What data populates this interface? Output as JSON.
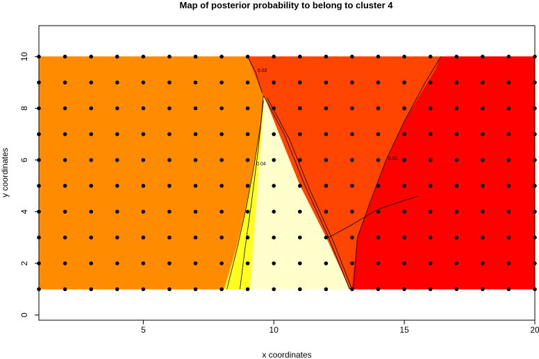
{
  "chart_data": {
    "type": "heatmap",
    "title": "Map of posterior probability to belong to cluster  4",
    "xlabel": "x coordinates",
    "ylabel": "y coordinates",
    "xlim": [
      1,
      20
    ],
    "ylim": [
      -0.2,
      11.2
    ],
    "xticks": [
      5,
      10,
      15,
      20
    ],
    "yticks": [
      0,
      2,
      4,
      6,
      8,
      10
    ],
    "grid": false,
    "legend": "none",
    "field_extent": {
      "x": [
        1,
        20
      ],
      "y": [
        1,
        10
      ]
    },
    "regions": [
      {
        "color": "#ff8c00",
        "polygon": [
          [
            1,
            1
          ],
          [
            8.1,
            1
          ],
          [
            8.55,
            2.5
          ],
          [
            8.9,
            4
          ],
          [
            9.2,
            5.5
          ],
          [
            9.45,
            7
          ],
          [
            9.6,
            8.5
          ],
          [
            9.2,
            9.5
          ],
          [
            9.0,
            10
          ],
          [
            1,
            10
          ]
        ]
      },
      {
        "color": "#ff4500",
        "polygon": [
          [
            9.6,
            8.5
          ],
          [
            9.2,
            9.5
          ],
          [
            9.0,
            10
          ],
          [
            16.4,
            10
          ],
          [
            16.2,
            9.5
          ],
          [
            15.0,
            7.5
          ],
          [
            14.3,
            6
          ],
          [
            13.7,
            4.4
          ],
          [
            13.2,
            3
          ],
          [
            13.0,
            1
          ],
          [
            12.9,
            1
          ],
          [
            12.0,
            3
          ],
          [
            11.0,
            5
          ],
          [
            10.2,
            7
          ]
        ]
      },
      {
        "color": "#ff0000",
        "polygon": [
          [
            16.4,
            10
          ],
          [
            20,
            10
          ],
          [
            20,
            1
          ],
          [
            13.0,
            1
          ],
          [
            13.2,
            3
          ],
          [
            13.7,
            4.4
          ],
          [
            14.3,
            6
          ],
          [
            15.0,
            7.5
          ],
          [
            16.2,
            9.5
          ]
        ]
      },
      {
        "color": "#ffff20",
        "polygon": [
          [
            8.1,
            1
          ],
          [
            9.1,
            1
          ],
          [
            9.2,
            2.5
          ],
          [
            9.35,
            4.5
          ],
          [
            9.5,
            6.5
          ],
          [
            9.65,
            8.4
          ],
          [
            9.6,
            8.5
          ],
          [
            9.45,
            7
          ],
          [
            9.2,
            5.5
          ],
          [
            8.9,
            4
          ],
          [
            8.55,
            2.5
          ]
        ]
      },
      {
        "color": "#ffffcc",
        "polygon": [
          [
            9.1,
            1
          ],
          [
            12.9,
            1
          ],
          [
            12.0,
            3
          ],
          [
            11.0,
            5
          ],
          [
            10.2,
            7
          ],
          [
            9.65,
            8.4
          ],
          [
            9.5,
            6.5
          ],
          [
            9.35,
            4.5
          ],
          [
            9.2,
            2.5
          ]
        ]
      }
    ],
    "contours": [
      {
        "label": "0.04",
        "points": [
          [
            8.2,
            1
          ],
          [
            8.6,
            2.6
          ],
          [
            8.95,
            4.2
          ],
          [
            9.25,
            5.8
          ],
          [
            9.5,
            7.4
          ],
          [
            9.6,
            8.5
          ]
        ]
      },
      {
        "label": "",
        "points": [
          [
            8.7,
            1
          ],
          [
            8.9,
            2.6
          ],
          [
            9.15,
            4.4
          ],
          [
            9.4,
            6.4
          ],
          [
            9.6,
            8.3
          ]
        ]
      },
      {
        "label": "",
        "points": [
          [
            9.6,
            8.5
          ],
          [
            10.4,
            7
          ],
          [
            11.2,
            5
          ],
          [
            12.1,
            3
          ],
          [
            12.9,
            1
          ]
        ]
      },
      {
        "label": "",
        "points": [
          [
            9.75,
            8.4
          ],
          [
            10.6,
            6.8
          ],
          [
            11.4,
            4.8
          ],
          [
            12.3,
            2.8
          ],
          [
            13.0,
            1
          ]
        ]
      },
      {
        "label": "0.02",
        "points": [
          [
            9.0,
            10
          ],
          [
            9.3,
            9.4
          ],
          [
            9.55,
            8.6
          ]
        ]
      },
      {
        "label": "0.02",
        "points": [
          [
            16.4,
            10
          ],
          [
            15.8,
            9
          ],
          [
            15.0,
            7.5
          ],
          [
            14.3,
            6
          ],
          [
            13.7,
            4.4
          ],
          [
            13.2,
            3
          ],
          [
            13.05,
            1
          ]
        ]
      },
      {
        "label": "",
        "points": [
          [
            12.1,
            3
          ],
          [
            13.0,
            3.5
          ],
          [
            14.0,
            4.1
          ],
          [
            15.5,
            4.6
          ]
        ]
      }
    ],
    "points": {
      "x": [
        1,
        2,
        3,
        4,
        5,
        6,
        7,
        8,
        9,
        10,
        11,
        12,
        13,
        14,
        15,
        16,
        17,
        18,
        19,
        20
      ],
      "y": [
        1,
        2,
        3,
        4,
        5,
        6,
        7,
        8,
        9,
        10
      ]
    }
  }
}
